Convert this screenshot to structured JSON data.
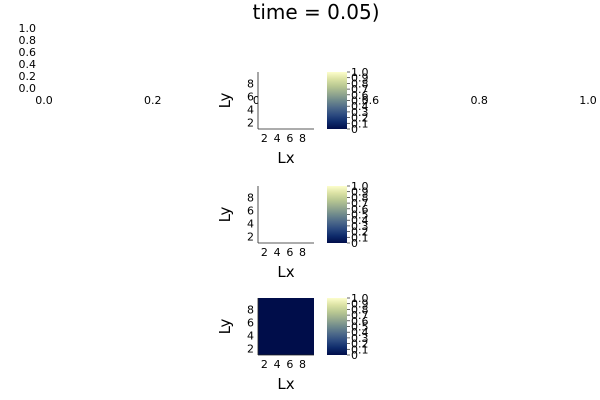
{
  "title": "time = 0.05)",
  "background_axis": {
    "x_ticks": [
      "0.0",
      "0.2",
      "0.4",
      "0.6",
      "0.8",
      "1.0"
    ],
    "y_ticks": [
      "0.0",
      "0.2",
      "0.4",
      "0.6",
      "0.8",
      "1.0"
    ]
  },
  "chart_data": [
    {
      "type": "heatmap",
      "xlabel": "Lx",
      "ylabel": "Ly",
      "x_ticks": [
        "2",
        "4",
        "6",
        "8"
      ],
      "y_ticks": [
        "2",
        "4",
        "6",
        "8"
      ],
      "fill": "#ffffff",
      "colorbar": {
        "range": [
          0,
          1
        ],
        "ticks": [
          "0",
          "0.1",
          "0.2",
          "0.3",
          "0.4",
          "0.5",
          "0.6",
          "0.7",
          "0.8",
          "0.9",
          "1.0"
        ]
      }
    },
    {
      "type": "heatmap",
      "xlabel": "Lx",
      "ylabel": "Ly",
      "x_ticks": [
        "2",
        "4",
        "6",
        "8"
      ],
      "y_ticks": [
        "2",
        "4",
        "6",
        "8"
      ],
      "fill": "#ffffff",
      "colorbar": {
        "range": [
          0,
          1
        ],
        "ticks": [
          "0",
          "0.1",
          "0.2",
          "0.3",
          "0.4",
          "0.5",
          "0.6",
          "0.7",
          "0.8",
          "0.9",
          "1.0"
        ]
      }
    },
    {
      "type": "heatmap",
      "xlabel": "Lx",
      "ylabel": "Ly",
      "x_ticks": [
        "2",
        "4",
        "6",
        "8"
      ],
      "y_ticks": [
        "2",
        "4",
        "6",
        "8"
      ],
      "fill": "#000d4a",
      "colorbar": {
        "range": [
          0,
          1
        ],
        "ticks": [
          "0",
          "0.1",
          "0.2",
          "0.3",
          "0.4",
          "0.5",
          "0.6",
          "0.7",
          "0.8",
          "0.9",
          "1.0"
        ]
      }
    }
  ],
  "colormap": [
    "#000d4a",
    "#0e2b6b",
    "#2d4b80",
    "#4e6a8a",
    "#6f8a8c",
    "#95a98f",
    "#b8c792",
    "#dbe2a4",
    "#fdfecc"
  ]
}
